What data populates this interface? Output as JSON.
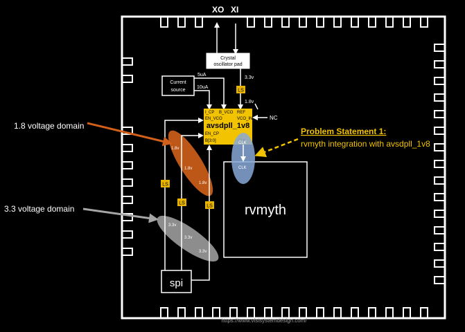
{
  "colors": {
    "background": "#000000",
    "line": "#ffffff",
    "chip_box": "#ffffff",
    "pll_fill": "#f2c300",
    "level_shifter_fill": "#e8b400",
    "domain_1v8": "#d2601a",
    "domain_3v3": "#a6a6a6",
    "clk_ellipse": "#8aa9d8",
    "problem_text": "#f2c300",
    "problem_arrow": "#f2c300"
  },
  "pins": {
    "xo": "XO",
    "xi": "XI"
  },
  "crystal": {
    "line1": "Crystal",
    "line2": "oscillator pad",
    "voltage_out": "3.3v"
  },
  "current_source": {
    "line1": "Current",
    "line2": "source",
    "out_5ua": "5uA",
    "out_10ua": "10uA"
  },
  "level_shifter": {
    "label": "LS"
  },
  "pll": {
    "title": "avsdpll_1v8",
    "pin_i_cp": "I_CP",
    "pin_b_vco": "B_VCO",
    "pin_ref": "REF",
    "pin_en_vco": "EN_VCO",
    "pin_vco_in": "VCO_IN",
    "pin_en_cp": "EN_CP",
    "pin_b": "B[3:0]",
    "pin_clk": "CLK",
    "ref_voltage": "1.8v",
    "nc": "NC"
  },
  "rvmyth": {
    "label": "rvmyth",
    "clk": "CLK"
  },
  "spi": {
    "label": "spi"
  },
  "domains": {
    "v18_label": "1.8 voltage domain",
    "v33_label": "3.3 voltage domain",
    "v18_tag": "1.8v",
    "v33_tag": "3.3v"
  },
  "problem": {
    "title": "Problem Statement 1:",
    "text": "rvmyth integration with avsdpll_1v8"
  },
  "footer": {
    "url": "https://www.vlsisystemdesign.com/"
  }
}
